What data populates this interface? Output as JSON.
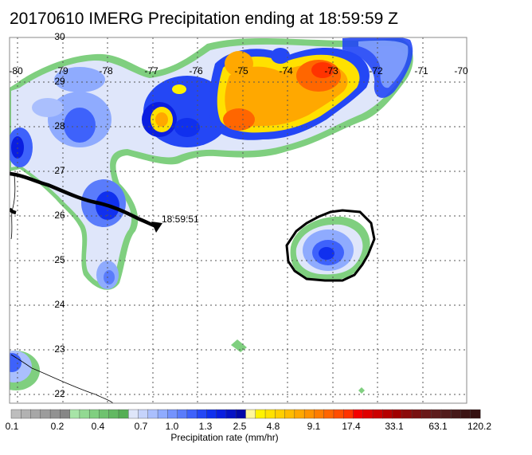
{
  "title": "20170610 IMERG Precipitation ending at 18:59:59 Z",
  "map": {
    "lon_labels": [
      "-80",
      "-79",
      "-78",
      "-77",
      "-76",
      "-75",
      "-74",
      "-73",
      "-72",
      "-71",
      "-70"
    ],
    "lat_labels": [
      "30",
      "29",
      "28",
      "27",
      "26",
      "25",
      "24",
      "23",
      "22"
    ],
    "track_time_label": "18:59:51"
  },
  "colorbar": {
    "labels": [
      "0.1",
      "0.2",
      "0.4",
      "0.7",
      "1.0",
      "1.3",
      "2.5",
      "4.8",
      "9.1",
      "17.4",
      "33.1",
      "63.1",
      "120.2"
    ],
    "colors": [
      "#bdbdbd",
      "#b2b2b2",
      "#a7a7a7",
      "#9c9c9c",
      "#919191",
      "#868686",
      "#a7e4a7",
      "#92d992",
      "#80cf80",
      "#6fc26f",
      "#62b862",
      "#55ae55",
      "#dfe6fa",
      "#c5d3fb",
      "#aabffd",
      "#8fabfe",
      "#7493fd",
      "#5a7cfb",
      "#3e62fb",
      "#2447f5",
      "#1030ee",
      "#0a1ee0",
      "#0612c6",
      "#0308a8",
      "#fff79a",
      "#fff200",
      "#ffe100",
      "#ffcf00",
      "#ffbc00",
      "#ffa800",
      "#ff9300",
      "#ff7d00",
      "#ff6600",
      "#ff4e00",
      "#ff3300",
      "#f40000",
      "#e00000",
      "#cc0000",
      "#b60000",
      "#a00000",
      "#8c0a0a",
      "#781010",
      "#6a1818",
      "#5e1c1c",
      "#521c1c",
      "#461818",
      "#3c1414",
      "#341010"
    ],
    "label": "Precipitation rate (mm/hr)"
  }
}
